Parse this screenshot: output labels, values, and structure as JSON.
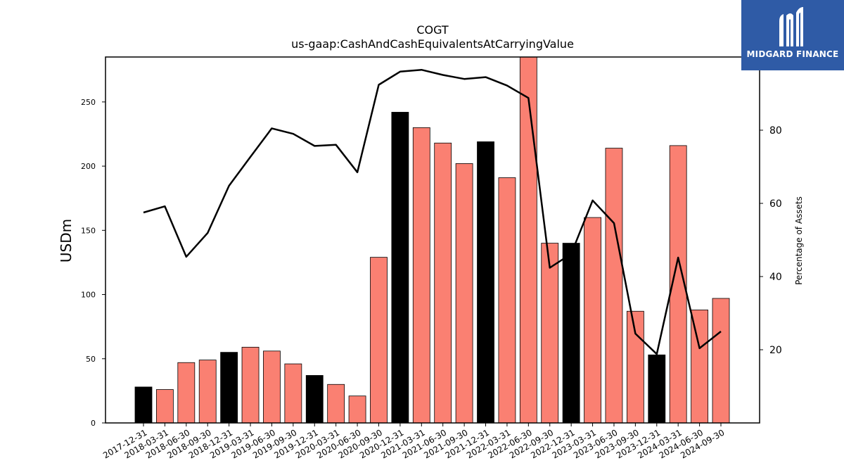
{
  "chart_data": {
    "type": "bar",
    "title": "COGT",
    "subtitle": "us-gaap:CashAndCashEquivalentsAtCarryingValue",
    "ylabel": "USDm",
    "y2label": "Percentage of Assets",
    "ylim": [
      0,
      285
    ],
    "y2lim": [
      0,
      100
    ],
    "yticks": [
      0,
      50,
      100,
      150,
      200,
      250
    ],
    "y2ticks": [
      20,
      40,
      60,
      80
    ],
    "categories": [
      "2017-12-31",
      "2018-03-31",
      "2018-06-30",
      "2018-09-30",
      "2018-12-31",
      "2019-03-31",
      "2019-06-30",
      "2019-09-30",
      "2019-12-31",
      "2020-03-31",
      "2020-06-30",
      "2020-09-30",
      "2020-12-31",
      "2021-03-31",
      "2021-06-30",
      "2021-09-30",
      "2021-12-31",
      "2022-03-31",
      "2022-06-30",
      "2022-09-30",
      "2022-12-31",
      "2023-03-31",
      "2023-06-30",
      "2023-09-30",
      "2023-12-31",
      "2024-03-31",
      "2024-06-30",
      "2024-09-30"
    ],
    "series": [
      {
        "type": "bar",
        "axis": "left",
        "values": [
          28,
          26,
          47,
          49,
          55,
          59,
          56,
          46,
          37,
          30,
          21,
          129,
          242,
          230,
          218,
          202,
          219,
          191,
          288,
          140,
          140,
          160,
          214,
          87,
          53,
          216,
          88,
          97
        ],
        "colors": [
          "#000000",
          "#fa8072",
          "#fa8072",
          "#fa8072",
          "#000000",
          "#fa8072",
          "#fa8072",
          "#fa8072",
          "#000000",
          "#fa8072",
          "#fa8072",
          "#fa8072",
          "#000000",
          "#fa8072",
          "#fa8072",
          "#fa8072",
          "#000000",
          "#fa8072",
          "#fa8072",
          "#fa8072",
          "#000000",
          "#fa8072",
          "#fa8072",
          "#fa8072",
          "#000000",
          "#fa8072",
          "#fa8072",
          "#fa8072"
        ]
      },
      {
        "type": "line",
        "axis": "right",
        "color": "#000000",
        "values": [
          57.5,
          59.2,
          45.4,
          51.9,
          64.8,
          72.7,
          80.5,
          79.0,
          75.7,
          76.0,
          68.5,
          92.4,
          96.0,
          96.5,
          95.1,
          94.0,
          94.5,
          92.2,
          88.8,
          42.4,
          46.2,
          60.8,
          54.6,
          24.4,
          18.8,
          45.2,
          20.4,
          25.0
        ]
      }
    ],
    "grid": false,
    "legend": "none"
  },
  "logo": {
    "text": "MIDGARD FINANCE"
  }
}
